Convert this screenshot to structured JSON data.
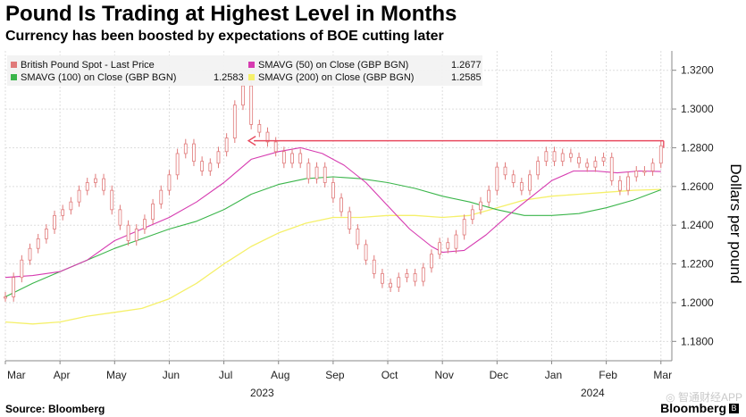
{
  "header": {
    "title": "Pound Is Trading at Highest Level in Months",
    "subtitle": "Currency has been boosted by expectations of BOE cutting later"
  },
  "footer": {
    "source": "Source: Bloomberg",
    "brand": "Bloomberg",
    "logo_glyph": "B",
    "watermark": "◎ 智通财经APP"
  },
  "colors": {
    "price": "#e07a7a",
    "sma50": "#d63bb0",
    "sma100": "#3ab54a",
    "sma200": "#f5f06a",
    "arrow": "#e84a5f",
    "grid": "#dddddd",
    "axis_text": "#222222"
  },
  "chart_data": {
    "type": "line",
    "title": "Pound Is Trading at Highest Level in Months",
    "subtitle": "Currency has been boosted by expectations of BOE cutting later",
    "xlabel": "",
    "ylabel": "Dollars per pound",
    "ylim": [
      1.17,
      1.33
    ],
    "x_range": [
      0,
      12.2
    ],
    "y_ticks": [
      "1.3200",
      "1.3000",
      "1.2800",
      "1.2600",
      "1.2400",
      "1.2200",
      "1.2000",
      "1.1800"
    ],
    "y_tick_values": [
      1.32,
      1.3,
      1.28,
      1.26,
      1.24,
      1.22,
      1.2,
      1.18
    ],
    "x_ticks": [
      "Mar",
      "Apr",
      "May",
      "Jun",
      "Jul",
      "Aug",
      "Sep",
      "Oct",
      "Nov",
      "Dec",
      "Jan",
      "Feb",
      "Mar"
    ],
    "x_tick_values": [
      0,
      1,
      2,
      3,
      4,
      5,
      6,
      7,
      8,
      9,
      10,
      11,
      12
    ],
    "year_labels": [
      {
        "label": "2023",
        "x": 4.7
      },
      {
        "label": "2024",
        "x": 10.75
      }
    ],
    "grid": true,
    "legend_position": "top-left",
    "legend": [
      {
        "key": "price",
        "label": "British Pound Spot - Last Price",
        "value": ""
      },
      {
        "key": "sma50",
        "label": "SMAVG (50)  on Close (GBP BGN)",
        "value": "1.2677"
      },
      {
        "key": "sma100",
        "label": "SMAVG (100)  on Close (GBP BGN)",
        "value": "1.2583"
      },
      {
        "key": "sma200",
        "label": "SMAVG (200)  on Close (GBP BGN)",
        "value": "1.2585"
      }
    ],
    "series": [
      {
        "key": "price",
        "name": "British Pound Spot - Last Price",
        "style": "candles",
        "x": [
          0,
          0.15,
          0.3,
          0.45,
          0.6,
          0.75,
          0.9,
          1.05,
          1.2,
          1.35,
          1.5,
          1.65,
          1.8,
          1.95,
          2.1,
          2.25,
          2.4,
          2.55,
          2.7,
          2.85,
          3.0,
          3.15,
          3.3,
          3.45,
          3.6,
          3.75,
          3.9,
          4.05,
          4.2,
          4.35,
          4.5,
          4.65,
          4.8,
          4.95,
          5.1,
          5.25,
          5.4,
          5.55,
          5.7,
          5.85,
          6.0,
          6.15,
          6.3,
          6.45,
          6.6,
          6.75,
          6.9,
          7.05,
          7.2,
          7.35,
          7.5,
          7.65,
          7.8,
          7.95,
          8.1,
          8.25,
          8.4,
          8.55,
          8.7,
          8.85,
          9.0,
          9.15,
          9.3,
          9.45,
          9.6,
          9.75,
          9.9,
          10.05,
          10.2,
          10.35,
          10.5,
          10.65,
          10.8,
          10.95,
          11.1,
          11.25,
          11.4,
          11.55,
          11.7,
          11.85,
          12.0
        ],
        "values": [
          1.203,
          1.213,
          1.222,
          1.228,
          1.233,
          1.238,
          1.245,
          1.248,
          1.252,
          1.258,
          1.262,
          1.264,
          1.258,
          1.248,
          1.24,
          1.232,
          1.238,
          1.243,
          1.251,
          1.258,
          1.266,
          1.277,
          1.282,
          1.273,
          1.268,
          1.272,
          1.278,
          1.285,
          1.302,
          1.312,
          1.292,
          1.288,
          1.283,
          1.278,
          1.272,
          1.277,
          1.272,
          1.264,
          1.27,
          1.262,
          1.254,
          1.247,
          1.238,
          1.23,
          1.222,
          1.215,
          1.21,
          1.208,
          1.213,
          1.215,
          1.211,
          1.218,
          1.225,
          1.231,
          1.228,
          1.235,
          1.243,
          1.248,
          1.252,
          1.258,
          1.27,
          1.266,
          1.262,
          1.258,
          1.266,
          1.273,
          1.278,
          1.273,
          1.277,
          1.275,
          1.272,
          1.27,
          1.273,
          1.275,
          1.263,
          1.258,
          1.265,
          1.268,
          1.268,
          1.272,
          1.281
        ]
      },
      {
        "key": "sma50",
        "name": "SMAVG (50)  on Close (GBP BGN)",
        "style": "line",
        "x": [
          0,
          0.5,
          1.0,
          1.5,
          2.0,
          2.5,
          3.0,
          3.5,
          4.0,
          4.5,
          5.0,
          5.4,
          5.8,
          6.2,
          6.6,
          7.0,
          7.4,
          7.8,
          8.0,
          8.4,
          8.8,
          9.2,
          9.6,
          10.0,
          10.4,
          10.8,
          11.2,
          11.6,
          12.0
        ],
        "values": [
          1.213,
          1.214,
          1.216,
          1.222,
          1.232,
          1.238,
          1.244,
          1.252,
          1.262,
          1.274,
          1.278,
          1.28,
          1.277,
          1.271,
          1.262,
          1.25,
          1.238,
          1.229,
          1.226,
          1.227,
          1.235,
          1.245,
          1.254,
          1.263,
          1.268,
          1.268,
          1.267,
          1.268,
          1.2677
        ]
      },
      {
        "key": "sma100",
        "name": "SMAVG (100)  on Close (GBP BGN)",
        "style": "line",
        "x": [
          0,
          0.5,
          1.0,
          1.5,
          2.0,
          2.5,
          3.0,
          3.5,
          4.0,
          4.5,
          5.0,
          5.5,
          6.0,
          6.5,
          7.0,
          7.5,
          8.0,
          8.5,
          9.0,
          9.5,
          10.0,
          10.5,
          11.0,
          11.5,
          12.0
        ],
        "values": [
          1.203,
          1.21,
          1.216,
          1.222,
          1.228,
          1.233,
          1.238,
          1.242,
          1.248,
          1.256,
          1.261,
          1.264,
          1.265,
          1.264,
          1.262,
          1.259,
          1.255,
          1.252,
          1.248,
          1.245,
          1.245,
          1.246,
          1.249,
          1.253,
          1.2583
        ]
      },
      {
        "key": "sma200",
        "name": "SMAVG (200)  on Close (GBP BGN)",
        "style": "line",
        "x": [
          0,
          0.5,
          1.0,
          1.5,
          2.0,
          2.5,
          3.0,
          3.5,
          4.0,
          4.5,
          5.0,
          5.5,
          6.0,
          6.5,
          7.0,
          7.5,
          8.0,
          8.5,
          9.0,
          9.5,
          10.0,
          10.5,
          11.0,
          11.5,
          12.0
        ],
        "values": [
          1.19,
          1.189,
          1.19,
          1.193,
          1.195,
          1.197,
          1.202,
          1.21,
          1.22,
          1.229,
          1.236,
          1.241,
          1.244,
          1.244,
          1.245,
          1.245,
          1.244,
          1.245,
          1.249,
          1.253,
          1.255,
          1.256,
          1.257,
          1.258,
          1.2585
        ]
      }
    ],
    "annotations": [
      {
        "type": "arrow",
        "y": 1.2836,
        "x_start": 12.05,
        "x_end": 4.45
      }
    ]
  }
}
